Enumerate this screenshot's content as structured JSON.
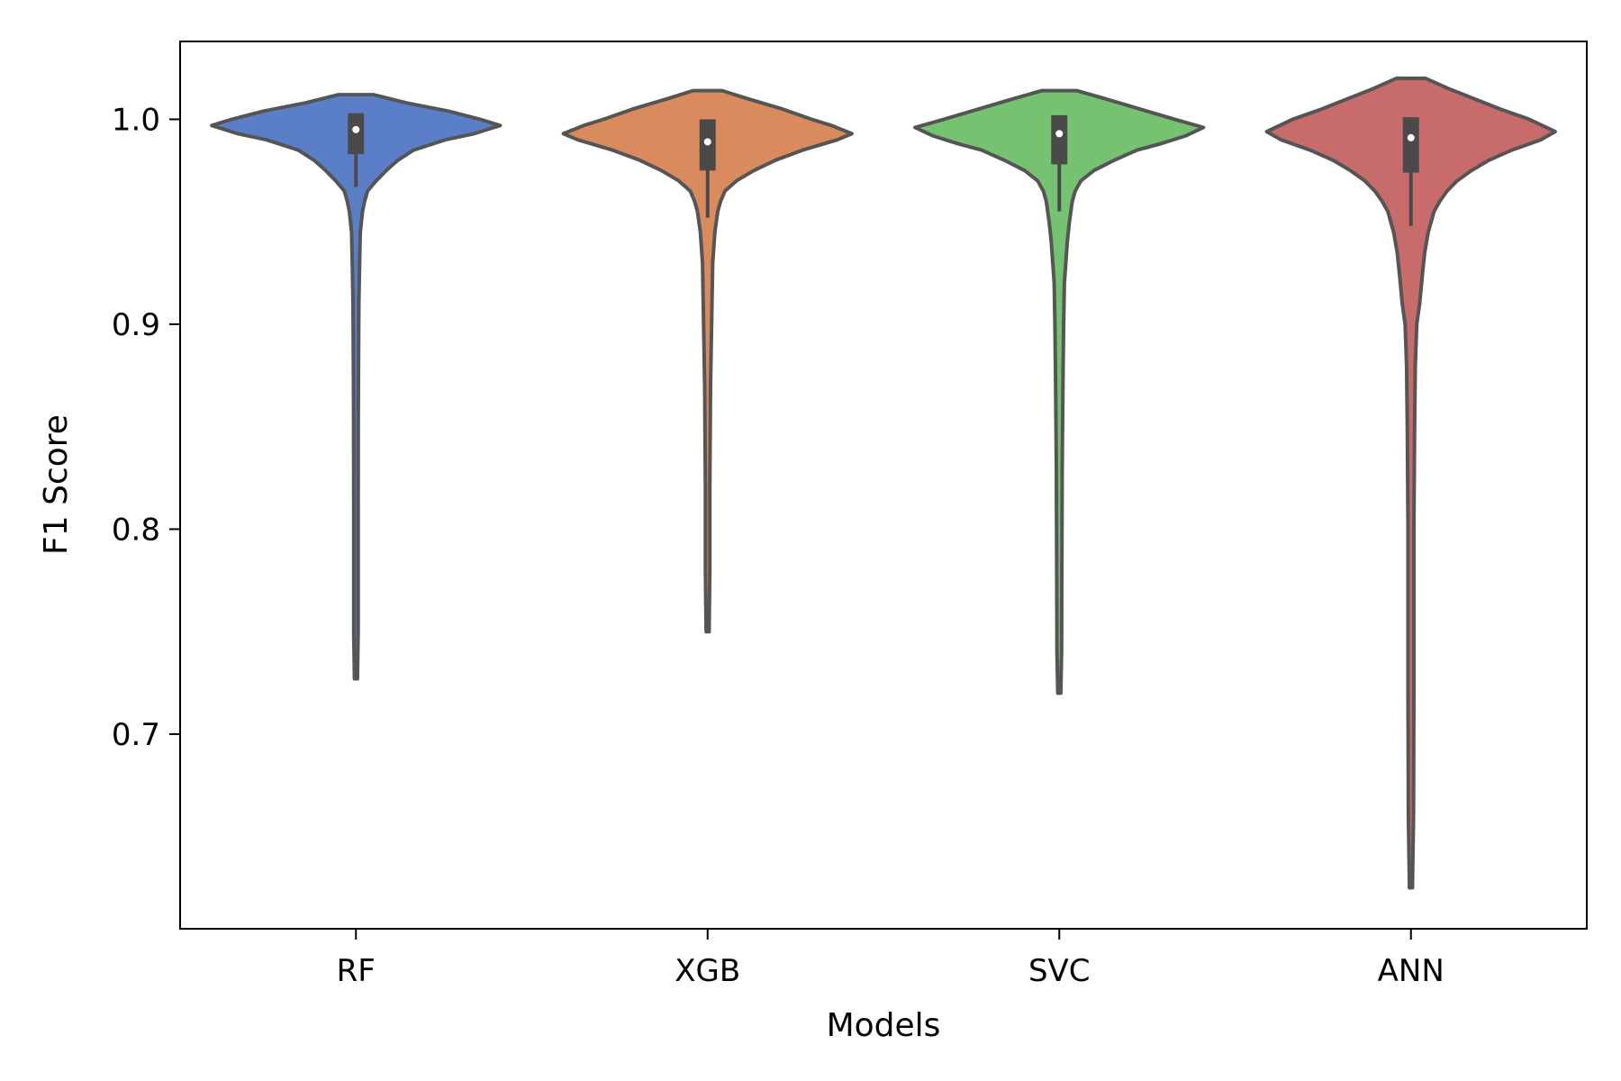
{
  "chart_data": {
    "type": "violin",
    "xlabel": "Models",
    "ylabel": "F1 Score",
    "ylim": [
      0.605,
      1.038
    ],
    "yticks": [
      0.7,
      0.8,
      0.9,
      1.0
    ],
    "ytick_labels": [
      "0.7",
      "0.8",
      "0.9",
      "1.0"
    ],
    "categories": [
      "RF",
      "XGB",
      "SVC",
      "ANN"
    ],
    "grid": false,
    "series": [
      {
        "color": "#5a7fc8",
        "min": 0.727,
        "q1": 0.983,
        "median": 0.995,
        "q3": 1.003,
        "max": 1.012,
        "whisker_low": 0.967,
        "whisker_high": 1.003,
        "density": [
          [
            1.012,
            0.12
          ],
          [
            1.008,
            0.35
          ],
          [
            1.004,
            0.64
          ],
          [
            1.0,
            0.86
          ],
          [
            0.997,
            1.0
          ],
          [
            0.993,
            0.82
          ],
          [
            0.99,
            0.62
          ],
          [
            0.985,
            0.4
          ],
          [
            0.98,
            0.29
          ],
          [
            0.975,
            0.21
          ],
          [
            0.97,
            0.14
          ],
          [
            0.965,
            0.08
          ],
          [
            0.96,
            0.06
          ],
          [
            0.955,
            0.045
          ],
          [
            0.945,
            0.03
          ],
          [
            0.93,
            0.025
          ],
          [
            0.91,
            0.02
          ],
          [
            0.88,
            0.018
          ],
          [
            0.85,
            0.016
          ],
          [
            0.8,
            0.015
          ],
          [
            0.75,
            0.015
          ],
          [
            0.727,
            0.01
          ]
        ]
      },
      {
        "color": "#d98b5d",
        "min": 0.75,
        "q1": 0.975,
        "median": 0.989,
        "q3": 1.0,
        "max": 1.014,
        "whisker_low": 0.952,
        "whisker_high": 1.0,
        "density": [
          [
            1.014,
            0.1
          ],
          [
            1.01,
            0.28
          ],
          [
            1.005,
            0.52
          ],
          [
            1.0,
            0.72
          ],
          [
            0.997,
            0.86
          ],
          [
            0.993,
            1.0
          ],
          [
            0.99,
            0.9
          ],
          [
            0.985,
            0.66
          ],
          [
            0.98,
            0.47
          ],
          [
            0.975,
            0.32
          ],
          [
            0.97,
            0.2
          ],
          [
            0.965,
            0.12
          ],
          [
            0.96,
            0.09
          ],
          [
            0.955,
            0.07
          ],
          [
            0.945,
            0.05
          ],
          [
            0.93,
            0.035
          ],
          [
            0.91,
            0.03
          ],
          [
            0.89,
            0.025
          ],
          [
            0.87,
            0.02
          ],
          [
            0.82,
            0.015
          ],
          [
            0.78,
            0.015
          ],
          [
            0.75,
            0.01
          ]
        ]
      },
      {
        "color": "#75c370",
        "min": 0.72,
        "q1": 0.978,
        "median": 0.993,
        "q3": 1.002,
        "max": 1.014,
        "whisker_low": 0.955,
        "whisker_high": 1.002,
        "density": [
          [
            1.014,
            0.12
          ],
          [
            1.01,
            0.32
          ],
          [
            1.005,
            0.56
          ],
          [
            1.0,
            0.8
          ],
          [
            0.996,
            1.0
          ],
          [
            0.992,
            0.88
          ],
          [
            0.988,
            0.7
          ],
          [
            0.985,
            0.54
          ],
          [
            0.98,
            0.38
          ],
          [
            0.975,
            0.24
          ],
          [
            0.97,
            0.15
          ],
          [
            0.965,
            0.11
          ],
          [
            0.96,
            0.09
          ],
          [
            0.95,
            0.07
          ],
          [
            0.94,
            0.055
          ],
          [
            0.93,
            0.045
          ],
          [
            0.92,
            0.035
          ],
          [
            0.9,
            0.03
          ],
          [
            0.87,
            0.025
          ],
          [
            0.83,
            0.02
          ],
          [
            0.78,
            0.018
          ],
          [
            0.74,
            0.016
          ],
          [
            0.72,
            0.01
          ]
        ]
      },
      {
        "color": "#c76b6b",
        "min": 0.625,
        "q1": 0.974,
        "median": 0.991,
        "q3": 1.001,
        "max": 1.02,
        "whisker_low": 0.948,
        "whisker_high": 1.001,
        "density": [
          [
            1.02,
            0.1
          ],
          [
            1.015,
            0.26
          ],
          [
            1.01,
            0.44
          ],
          [
            1.005,
            0.62
          ],
          [
            1.0,
            0.82
          ],
          [
            0.994,
            1.0
          ],
          [
            0.99,
            0.9
          ],
          [
            0.985,
            0.7
          ],
          [
            0.98,
            0.54
          ],
          [
            0.975,
            0.42
          ],
          [
            0.97,
            0.32
          ],
          [
            0.965,
            0.25
          ],
          [
            0.96,
            0.2
          ],
          [
            0.955,
            0.16
          ],
          [
            0.945,
            0.12
          ],
          [
            0.935,
            0.095
          ],
          [
            0.925,
            0.08
          ],
          [
            0.91,
            0.06
          ],
          [
            0.9,
            0.04
          ],
          [
            0.88,
            0.03
          ],
          [
            0.85,
            0.025
          ],
          [
            0.8,
            0.02
          ],
          [
            0.72,
            0.02
          ],
          [
            0.66,
            0.018
          ],
          [
            0.625,
            0.01
          ]
        ]
      }
    ]
  }
}
